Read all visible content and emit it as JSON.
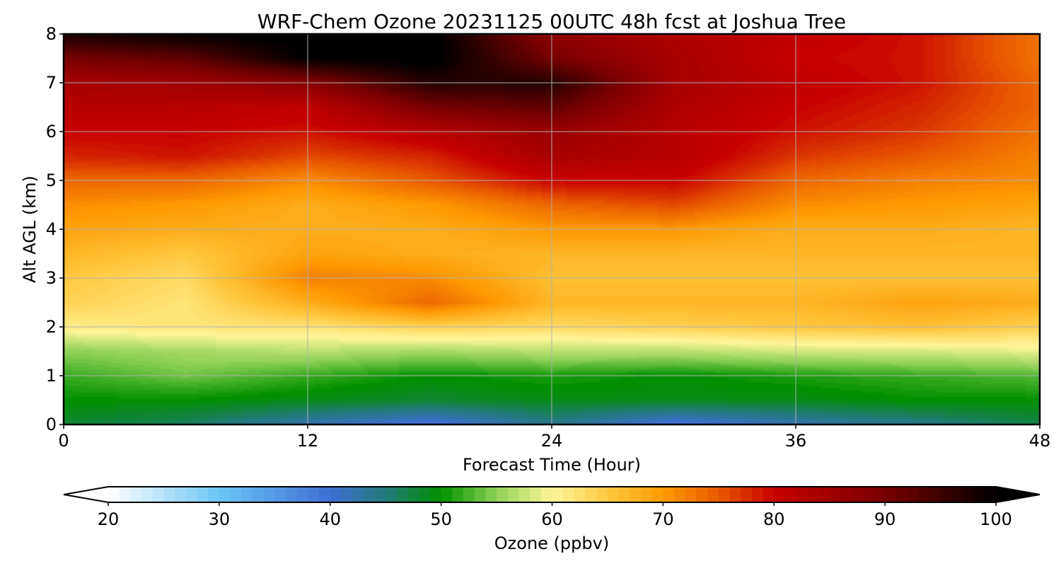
{
  "chart_data": {
    "type": "heatmap",
    "title": "WRF-Chem Ozone  20231125 00UTC 48h fcst at Joshua Tree",
    "xlabel": "Forecast Time (Hour)",
    "ylabel": "Alt AGL (km)",
    "xlim": [
      0,
      48
    ],
    "ylim": [
      0,
      8
    ],
    "x_ticks": [
      0,
      12,
      24,
      36,
      48
    ],
    "y_ticks": [
      0,
      1,
      2,
      3,
      4,
      5,
      6,
      7,
      8
    ],
    "grid": true,
    "x": [
      0,
      6,
      12,
      18,
      24,
      30,
      36,
      42,
      48
    ],
    "y": [
      0,
      0.5,
      1,
      1.5,
      2,
      2.5,
      3,
      3.5,
      4,
      4.5,
      5,
      5.5,
      6,
      6.5,
      7,
      7.5,
      8
    ],
    "z": [
      [
        48,
        46,
        42,
        39,
        44,
        39,
        42,
        44,
        47
      ],
      [
        50,
        50,
        49,
        48,
        49,
        49,
        49,
        50,
        50
      ],
      [
        52,
        54,
        52,
        50,
        51,
        50,
        51,
        52,
        53
      ],
      [
        55,
        56,
        57,
        56,
        57,
        57,
        58,
        58,
        59
      ],
      [
        61,
        62,
        62,
        64,
        63,
        64,
        65,
        66,
        64
      ],
      [
        64,
        62,
        68,
        74,
        67,
        67,
        67,
        69,
        68
      ],
      [
        65,
        63,
        72,
        71,
        66,
        66,
        66,
        66,
        66
      ],
      [
        67,
        65,
        69,
        68,
        67,
        67,
        67,
        67,
        67
      ],
      [
        69,
        68,
        68,
        68,
        70,
        70,
        68,
        68,
        67
      ],
      [
        71,
        70,
        68,
        70,
        74,
        76,
        71,
        70,
        69
      ],
      [
        74,
        74,
        71,
        75,
        80,
        80,
        74,
        72,
        71
      ],
      [
        78,
        79,
        76,
        78,
        84,
        82,
        77,
        75,
        72
      ],
      [
        80,
        80,
        79,
        82,
        86,
        82,
        79,
        77,
        73
      ],
      [
        82,
        82,
        81,
        90,
        92,
        83,
        80,
        78,
        74
      ],
      [
        84,
        85,
        88,
        97,
        97,
        84,
        81,
        79,
        74
      ],
      [
        90,
        92,
        100,
        101,
        90,
        84,
        80,
        79,
        73
      ],
      [
        98,
        100,
        101,
        101,
        87,
        83,
        81,
        79,
        73
      ]
    ],
    "colorbar": {
      "label": "Ozone  (ppbv)",
      "min": 20,
      "max": 100,
      "ticks": [
        20,
        30,
        40,
        50,
        60,
        70,
        80,
        90,
        100
      ],
      "extend": "both",
      "stops": [
        {
          "value": 20,
          "color": "#ffffff"
        },
        {
          "value": 30,
          "color": "#6cc5f5"
        },
        {
          "value": 40,
          "color": "#3f6ed4"
        },
        {
          "value": 45,
          "color": "#237a7a"
        },
        {
          "value": 50,
          "color": "#009000"
        },
        {
          "value": 55,
          "color": "#8ed158"
        },
        {
          "value": 60,
          "color": "#fff69a"
        },
        {
          "value": 65,
          "color": "#ffc840"
        },
        {
          "value": 70,
          "color": "#ff9a00"
        },
        {
          "value": 75,
          "color": "#e85a00"
        },
        {
          "value": 80,
          "color": "#c80000"
        },
        {
          "value": 90,
          "color": "#780000"
        },
        {
          "value": 100,
          "color": "#000000"
        }
      ]
    }
  }
}
